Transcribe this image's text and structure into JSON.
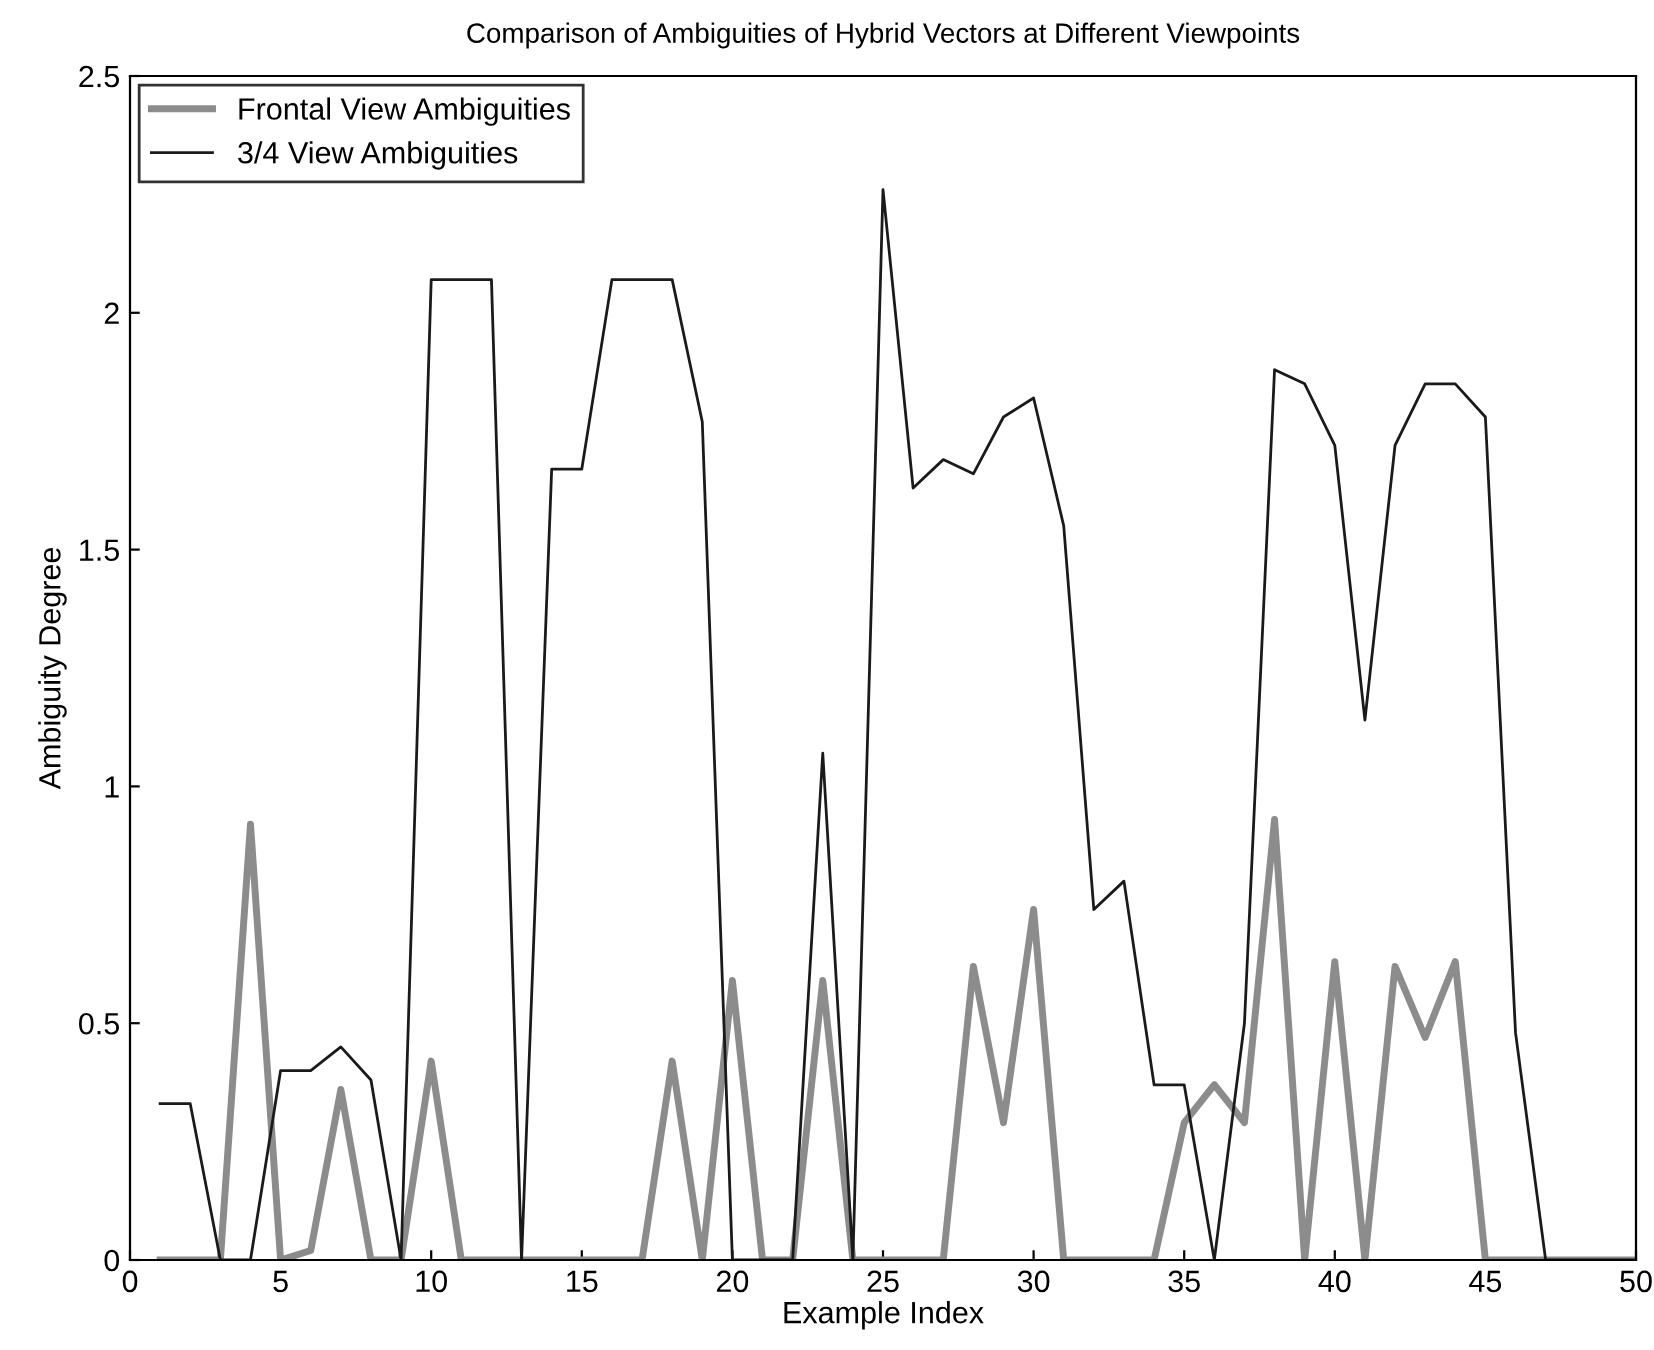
{
  "chart_data": {
    "type": "line",
    "title": "Comparison of Ambiguities of Hybrid Vectors at Different Viewpoints",
    "xlabel": "Example Index",
    "ylabel": "Ambiguity Degree",
    "x": [
      1,
      2,
      3,
      4,
      5,
      6,
      7,
      8,
      9,
      10,
      11,
      12,
      13,
      14,
      15,
      16,
      17,
      18,
      19,
      20,
      21,
      22,
      23,
      24,
      25,
      26,
      27,
      28,
      29,
      30,
      31,
      32,
      33,
      34,
      35,
      36,
      37,
      38,
      39,
      40,
      41,
      42,
      43,
      44,
      45,
      46,
      47,
      48,
      49,
      50
    ],
    "series": [
      {
        "name": "Frontal View Ambiguities",
        "color": "#8c8c8c",
        "values": [
          0,
          0,
          0,
          0.92,
          0,
          0.02,
          0.36,
          0,
          0,
          0.42,
          0,
          0,
          0,
          0,
          0,
          0,
          0,
          0.42,
          0,
          0.59,
          0,
          0,
          0.59,
          0,
          0,
          0,
          0,
          0.62,
          0.29,
          0.74,
          0,
          0,
          0,
          0,
          0.29,
          0.37,
          0.29,
          0.93,
          0,
          0.63,
          0,
          0.62,
          0.47,
          0.63,
          0,
          0,
          0,
          0,
          0,
          0
        ]
      },
      {
        "name": "3/4 View Ambiguities",
        "color": "#1a1a1a",
        "values": [
          0.33,
          0.33,
          0,
          0,
          0.4,
          0.4,
          0.45,
          0.38,
          0,
          2.07,
          2.07,
          2.07,
          0,
          1.67,
          1.67,
          2.07,
          2.07,
          2.07,
          1.77,
          0,
          0,
          0,
          1.07,
          0,
          2.26,
          1.63,
          1.69,
          1.66,
          1.78,
          1.82,
          1.55,
          0.74,
          0.8,
          0.37,
          0.37,
          0,
          0.5,
          1.88,
          1.85,
          1.72,
          1.14,
          1.72,
          1.85,
          1.85,
          1.78,
          0.48,
          0,
          0,
          0,
          0
        ]
      }
    ],
    "xlim": [
      0,
      50
    ],
    "ylim": [
      0,
      2.5
    ],
    "xticks": [
      0,
      5,
      10,
      15,
      20,
      25,
      30,
      35,
      40,
      45,
      50
    ],
    "yticks": [
      0,
      0.5,
      1,
      1.5,
      2,
      2.5
    ],
    "legend": "top left",
    "grid": false,
    "marker": "none",
    "line_style": "solid"
  }
}
